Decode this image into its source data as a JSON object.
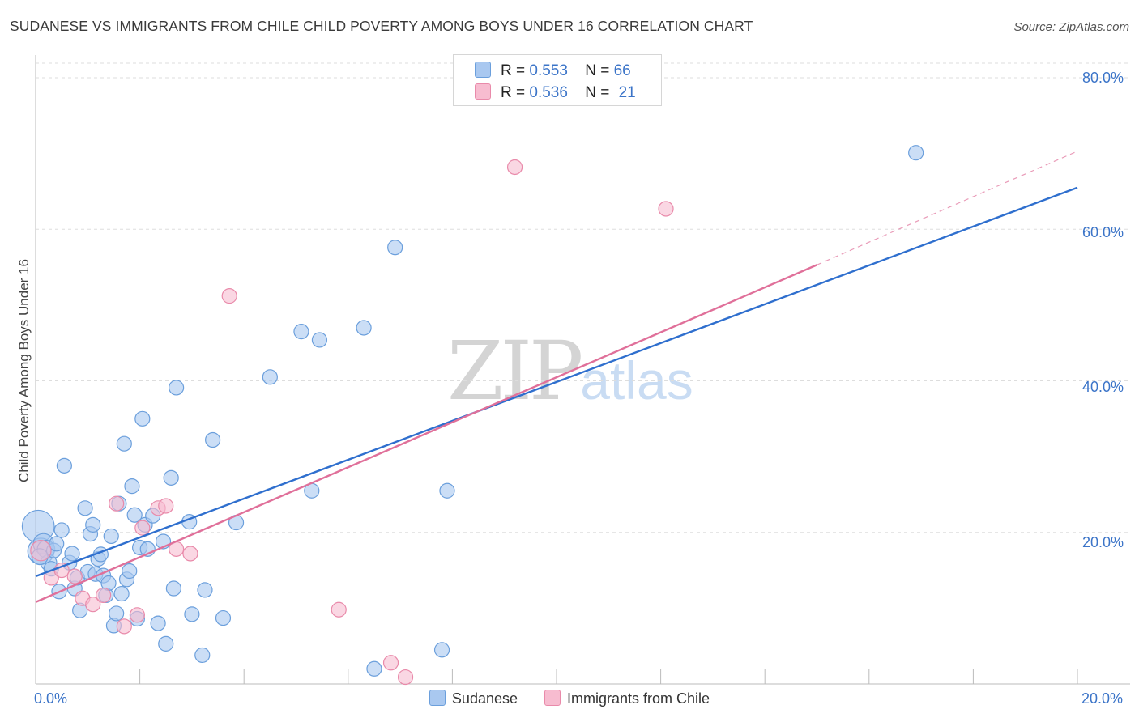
{
  "header": {
    "title": "SUDANESE VS IMMIGRANTS FROM CHILE CHILD POVERTY AMONG BOYS UNDER 16 CORRELATION CHART",
    "source": "Source: ZipAtlas.com"
  },
  "watermark": {
    "zip": "ZIP",
    "atlas": "atlas"
  },
  "legend": {
    "sudanese": {
      "r_label": "R =",
      "r_value": "0.553",
      "n_label": "N =",
      "n_value": "66"
    },
    "chile": {
      "r_label": "R =",
      "r_value": "0.536",
      "n_label": "N =",
      "n_value": "21"
    }
  },
  "bottom_legend": {
    "sudanese": "Sudanese",
    "chile": "Immigrants from Chile"
  },
  "colors": {
    "sudanese_fill": "#a9c8f0",
    "sudanese_stroke": "#6b9fdc",
    "sudanese_line": "#2f6fce",
    "chile_fill": "#f7bcd0",
    "chile_stroke": "#e98aaa",
    "chile_line": "#e0709a",
    "tick_text": "#3b74c8",
    "grid": "#dddddd"
  },
  "chart_data": {
    "type": "scatter",
    "title": "SUDANESE VS IMMIGRANTS FROM CHILE CHILD POVERTY AMONG BOYS UNDER 16 CORRELATION CHART",
    "xlabel": "",
    "ylabel": "Child Poverty Among Boys Under 16",
    "xlim": [
      0,
      20
    ],
    "ylim": [
      0,
      80
    ],
    "x_tick_labels": [
      "0.0%",
      "20.0%"
    ],
    "y_tick_labels": [
      "20.0%",
      "40.0%",
      "60.0%",
      "80.0%"
    ],
    "y_ticks": [
      20,
      40,
      60,
      80
    ],
    "grid": true,
    "legend_position": "top-center",
    "series": [
      {
        "name": "Sudanese",
        "r": 0.553,
        "n": 66,
        "trend": {
          "x": [
            0,
            20
          ],
          "y": [
            14.2,
            65.5
          ]
        },
        "points": [
          [
            0.05,
            20.8,
            22
          ],
          [
            0.1,
            17.5,
            18
          ],
          [
            0.15,
            18.5,
            14
          ],
          [
            0.2,
            17.8,
            12
          ],
          [
            0.25,
            16.0,
            11
          ],
          [
            0.3,
            15.2,
            10
          ],
          [
            0.35,
            17.6,
            10
          ],
          [
            0.4,
            18.5,
            10
          ],
          [
            0.45,
            12.2,
            10
          ],
          [
            0.5,
            20.3,
            10
          ],
          [
            0.55,
            28.8,
            10
          ],
          [
            0.65,
            16.0,
            10
          ],
          [
            0.7,
            17.2,
            10
          ],
          [
            0.75,
            12.6,
            10
          ],
          [
            0.8,
            14.0,
            10
          ],
          [
            0.85,
            9.7,
            10
          ],
          [
            0.95,
            23.2,
            10
          ],
          [
            1.0,
            14.8,
            10
          ],
          [
            1.05,
            19.8,
            10
          ],
          [
            1.1,
            21.0,
            10
          ],
          [
            1.15,
            14.5,
            10
          ],
          [
            1.2,
            16.5,
            10
          ],
          [
            1.25,
            17.1,
            10
          ],
          [
            1.3,
            14.3,
            10
          ],
          [
            1.35,
            11.7,
            10
          ],
          [
            1.4,
            13.3,
            10
          ],
          [
            1.45,
            19.5,
            10
          ],
          [
            1.5,
            7.7,
            10
          ],
          [
            1.55,
            9.3,
            10
          ],
          [
            1.6,
            23.8,
            10
          ],
          [
            1.65,
            11.9,
            10
          ],
          [
            1.7,
            31.7,
            10
          ],
          [
            1.75,
            13.8,
            10
          ],
          [
            1.8,
            14.9,
            10
          ],
          [
            1.85,
            26.1,
            10
          ],
          [
            1.9,
            22.3,
            10
          ],
          [
            1.95,
            8.6,
            10
          ],
          [
            2.0,
            18.0,
            10
          ],
          [
            2.05,
            35.0,
            10
          ],
          [
            2.1,
            21.0,
            10
          ],
          [
            2.15,
            17.8,
            10
          ],
          [
            2.25,
            22.2,
            10
          ],
          [
            2.35,
            8.0,
            10
          ],
          [
            2.45,
            18.8,
            10
          ],
          [
            2.5,
            5.3,
            10
          ],
          [
            2.6,
            27.2,
            10
          ],
          [
            2.65,
            12.6,
            10
          ],
          [
            2.7,
            39.1,
            10
          ],
          [
            2.95,
            21.4,
            10
          ],
          [
            3.0,
            9.2,
            10
          ],
          [
            3.2,
            3.8,
            10
          ],
          [
            3.25,
            12.4,
            10
          ],
          [
            3.4,
            32.2,
            10
          ],
          [
            3.6,
            8.7,
            10
          ],
          [
            3.85,
            21.3,
            10
          ],
          [
            4.5,
            40.5,
            10
          ],
          [
            5.1,
            46.5,
            10
          ],
          [
            5.45,
            45.4,
            10
          ],
          [
            5.3,
            25.5,
            10
          ],
          [
            6.3,
            47.0,
            10
          ],
          [
            6.5,
            2.0,
            10
          ],
          [
            6.9,
            57.6,
            10
          ],
          [
            7.9,
            25.5,
            10
          ],
          [
            7.8,
            4.5,
            10
          ],
          [
            16.9,
            70.1,
            10
          ],
          [
            0.08,
            16.8,
            11
          ]
        ]
      },
      {
        "name": "Immigrants from Chile",
        "r": 0.536,
        "n": 21,
        "trend": {
          "x": [
            0,
            15
          ],
          "y": [
            10.8,
            55.3
          ],
          "x_dashed_to": 20,
          "y_dashed_to": 70.3
        },
        "points": [
          [
            0.1,
            17.6,
            14
          ],
          [
            0.3,
            14.0,
            10
          ],
          [
            0.5,
            15.0,
            10
          ],
          [
            0.75,
            14.2,
            10
          ],
          [
            0.9,
            11.3,
            10
          ],
          [
            1.1,
            10.5,
            10
          ],
          [
            1.3,
            11.7,
            10
          ],
          [
            1.55,
            23.8,
            10
          ],
          [
            1.7,
            7.6,
            10
          ],
          [
            1.95,
            9.1,
            10
          ],
          [
            2.05,
            20.6,
            10
          ],
          [
            2.35,
            23.2,
            10
          ],
          [
            2.5,
            23.5,
            10
          ],
          [
            2.7,
            17.8,
            10
          ],
          [
            2.97,
            17.2,
            10
          ],
          [
            3.72,
            51.2,
            10
          ],
          [
            5.82,
            9.8,
            10
          ],
          [
            6.82,
            2.8,
            10
          ],
          [
            7.1,
            0.9,
            10
          ],
          [
            9.2,
            68.2,
            10
          ],
          [
            12.1,
            62.7,
            10
          ]
        ]
      }
    ]
  }
}
